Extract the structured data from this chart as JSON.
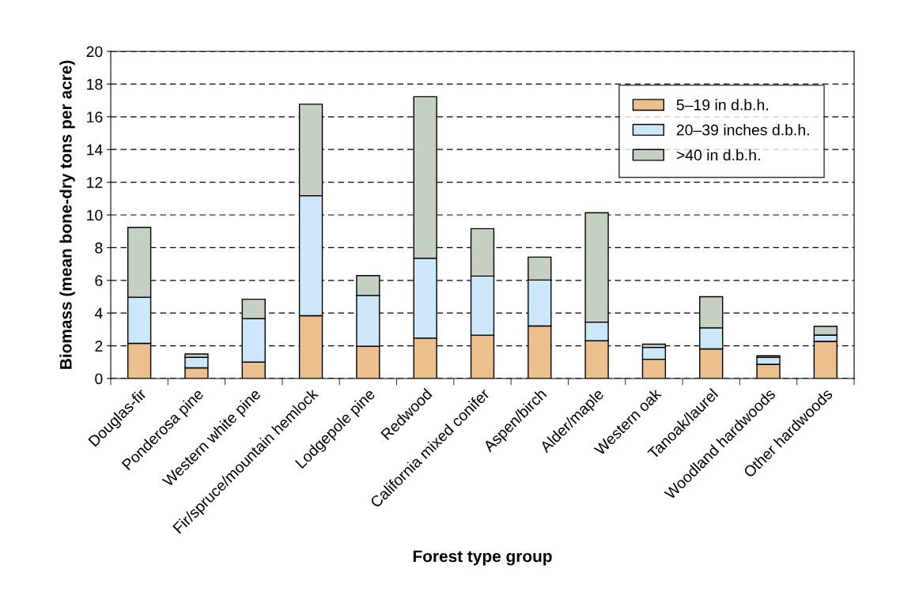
{
  "chart_data": {
    "type": "bar",
    "stacked": true,
    "xlabel": "Forest type group",
    "ylabel": "Biomass (mean bone-dry tons per acre)",
    "categories": [
      "Douglas-fir",
      "Ponderosa pine",
      "Western white pine",
      "Fir/spruce/mountain hemlock",
      "Lodgepole pine",
      "Redwood",
      "California mixed conifer",
      "Aspen/birch",
      "Alder/maple",
      "Western oak",
      "Tanoak/laurel",
      "Woodland hardwoods",
      "Other hardwoods"
    ],
    "series": [
      {
        "name": "5–19 in d.b.h.",
        "color": "#ebc08c",
        "values": [
          2.15,
          0.65,
          1.0,
          3.84,
          1.97,
          2.47,
          2.65,
          3.21,
          2.31,
          1.18,
          1.81,
          0.87,
          2.27
        ]
      },
      {
        "name": "20–39 inches d.b.h.",
        "color": "#cce6fa",
        "values": [
          2.82,
          0.64,
          2.66,
          7.34,
          3.11,
          4.88,
          3.61,
          2.81,
          1.14,
          0.72,
          1.29,
          0.42,
          0.39
        ]
      },
      {
        "name": ">40 in d.b.h.",
        "color": "#c5cfc2",
        "values": [
          4.27,
          0.21,
          1.19,
          5.59,
          1.21,
          9.88,
          2.9,
          1.4,
          6.68,
          0.2,
          1.9,
          0.1,
          0.53
        ]
      }
    ],
    "ylim": [
      0,
      20
    ],
    "yticks": [
      0,
      2,
      4,
      6,
      8,
      10,
      12,
      14,
      16,
      18,
      20
    ],
    "grid": "y",
    "legend": "top right"
  }
}
